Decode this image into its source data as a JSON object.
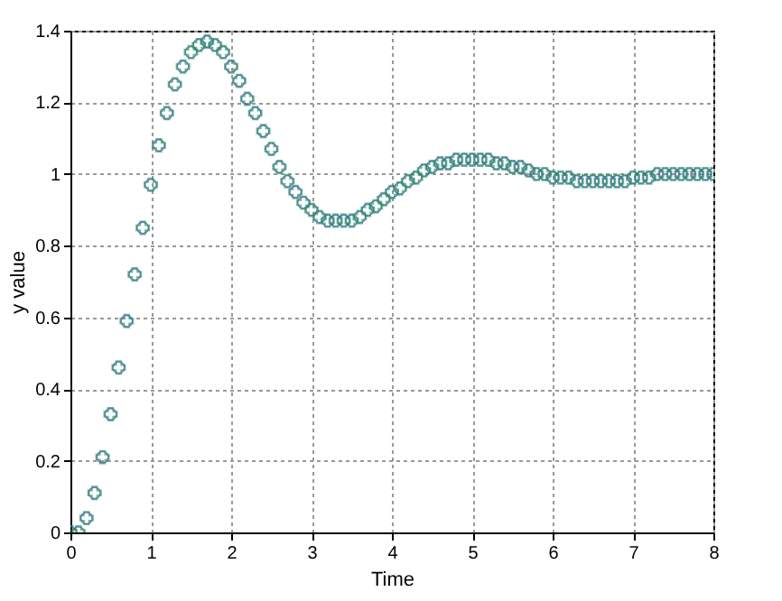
{
  "chart_data": {
    "type": "scatter",
    "xlabel": "Time",
    "ylabel": "y value",
    "x": [
      0,
      0.1,
      0.2,
      0.3,
      0.4,
      0.5,
      0.6,
      0.7,
      0.8,
      0.9,
      1.0,
      1.1,
      1.2,
      1.3,
      1.4,
      1.5,
      1.6,
      1.7,
      1.8,
      1.9,
      2.0,
      2.1,
      2.2,
      2.3,
      2.4,
      2.5,
      2.6,
      2.7,
      2.8,
      2.9,
      3.0,
      3.1,
      3.2,
      3.3,
      3.4,
      3.5,
      3.6,
      3.7,
      3.8,
      3.9,
      4.0,
      4.1,
      4.2,
      4.3,
      4.4,
      4.5,
      4.6,
      4.7,
      4.8,
      4.9,
      5.0,
      5.1,
      5.2,
      5.3,
      5.4,
      5.5,
      5.6,
      5.7,
      5.8,
      5.9,
      6.0,
      6.1,
      6.2,
      6.3,
      6.4,
      6.5,
      6.6,
      6.7,
      6.8,
      6.9,
      7.0,
      7.1,
      7.2,
      7.3,
      7.4,
      7.5,
      7.6,
      7.7,
      7.8,
      7.9,
      8.0
    ],
    "series": [
      {
        "color": "#3333cc",
        "marker": "circle",
        "values": [
          0,
          0,
          0.04,
          0.11,
          0.21,
          0.33,
          0.46,
          0.59,
          0.72,
          0.85,
          0.97,
          1.08,
          1.17,
          1.25,
          1.3,
          1.34,
          1.36,
          1.37,
          1.36,
          1.34,
          1.3,
          1.26,
          1.21,
          1.17,
          1.12,
          1.07,
          1.02,
          0.98,
          0.95,
          0.92,
          0.9,
          0.88,
          0.87,
          0.87,
          0.87,
          0.87,
          0.88,
          0.9,
          0.91,
          0.93,
          0.95,
          0.96,
          0.98,
          0.99,
          1.01,
          1.02,
          1.03,
          1.03,
          1.04,
          1.04,
          1.04,
          1.04,
          1.04,
          1.03,
          1.03,
          1.02,
          1.02,
          1.01,
          1.0,
          1.0,
          0.99,
          0.99,
          0.99,
          0.98,
          0.98,
          0.98,
          0.98,
          0.98,
          0.98,
          0.98,
          0.99,
          0.99,
          0.99,
          1.0,
          1.0,
          1.0,
          1.0,
          1.0,
          1.0,
          1.0,
          1.0
        ]
      },
      {
        "color": "#339966",
        "marker": "cross",
        "values": [
          0,
          0,
          0.04,
          0.11,
          0.21,
          0.33,
          0.46,
          0.59,
          0.72,
          0.85,
          0.97,
          1.08,
          1.17,
          1.25,
          1.3,
          1.34,
          1.36,
          1.37,
          1.36,
          1.34,
          1.3,
          1.26,
          1.21,
          1.17,
          1.12,
          1.07,
          1.02,
          0.98,
          0.95,
          0.92,
          0.9,
          0.88,
          0.87,
          0.87,
          0.87,
          0.87,
          0.88,
          0.9,
          0.91,
          0.93,
          0.95,
          0.96,
          0.98,
          0.99,
          1.01,
          1.02,
          1.03,
          1.03,
          1.04,
          1.04,
          1.04,
          1.04,
          1.04,
          1.03,
          1.03,
          1.02,
          1.02,
          1.01,
          1.0,
          1.0,
          0.99,
          0.99,
          0.99,
          0.98,
          0.98,
          0.98,
          0.98,
          0.98,
          0.98,
          0.98,
          0.99,
          0.99,
          0.99,
          1.0,
          1.0,
          1.0,
          1.0,
          1.0,
          1.0,
          1.0,
          1.0
        ]
      }
    ],
    "xlim": [
      0,
      8
    ],
    "xticks": [
      0,
      1,
      2,
      3,
      4,
      5,
      6,
      7,
      8
    ],
    "ylim": [
      0,
      1.4
    ],
    "yticks": [
      0,
      0.2,
      0.4,
      0.6,
      0.8,
      1,
      1.2,
      1.4
    ],
    "grid": true
  }
}
